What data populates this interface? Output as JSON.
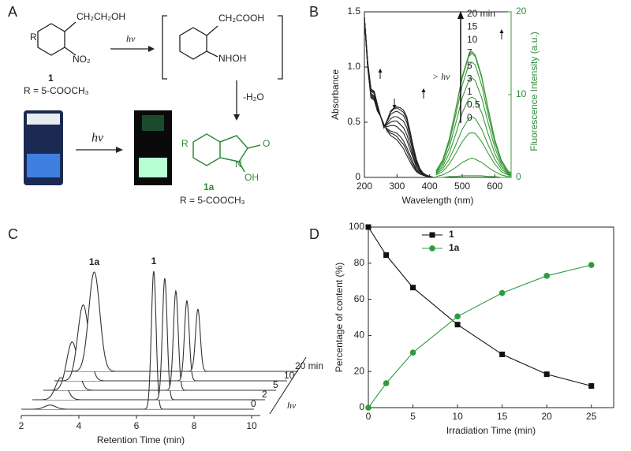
{
  "scheme": {
    "label": "A",
    "r1": "R",
    "side1": "CH₂CH₂OH",
    "no2": "NO₂",
    "num1": "1",
    "rdef1": "R = 5-COOCH₃",
    "hv1": "hν",
    "side2": "CH₂COOH",
    "nhoh": "NHOH",
    "loss": "-H₂O",
    "r2": "R",
    "o": "O",
    "n": "N",
    "oh": "OH",
    "num2": "1a",
    "rdef2": "R = 5-COOCH₃",
    "hv2": "hν"
  },
  "chart_data": [
    {
      "type": "line",
      "title": "B",
      "x_label": "Wavelength (nm)",
      "y_label": "Absorbance",
      "y2_label": "Fluorescence Intensity (a.u.)",
      "xlim": [
        200,
        650
      ],
      "xticks": [
        200,
        300,
        400,
        500,
        600
      ],
      "ylim": [
        0,
        1.5
      ],
      "yticks": [
        0,
        0.5,
        {
          "value": 1,
          "label": "1.0"
        },
        1.5
      ],
      "y2lim": [
        0,
        20
      ],
      "y2ticks": [
        0,
        10,
        20
      ],
      "arrow_label": "> hν",
      "series": [
        {
          "name": "0",
          "color": "#222222",
          "x": [
            200,
            210,
            220,
            230,
            240,
            250,
            260,
            270,
            280,
            290,
            300,
            310,
            320,
            330,
            340,
            350,
            360,
            370,
            380,
            390,
            400,
            410,
            420
          ],
          "values": [
            1.45,
            1.0,
            0.72,
            0.7,
            0.6,
            0.55,
            0.48,
            0.42,
            0.38,
            0.36,
            0.34,
            0.3,
            0.26,
            0.2,
            0.14,
            0.09,
            0.05,
            0.03,
            0.02,
            0.01,
            0.01,
            0,
            0
          ]
        },
        {
          "name": "0.5",
          "color": "#222222",
          "x": [
            200,
            210,
            220,
            230,
            240,
            250,
            260,
            270,
            280,
            290,
            300,
            310,
            320,
            330,
            340,
            350,
            360,
            370,
            380,
            390,
            400,
            410,
            420
          ],
          "values": [
            1.45,
            1.01,
            0.73,
            0.71,
            0.61,
            0.55,
            0.48,
            0.43,
            0.4,
            0.39,
            0.37,
            0.33,
            0.3,
            0.24,
            0.17,
            0.11,
            0.06,
            0.04,
            0.02,
            0.01,
            0.01,
            0,
            0
          ]
        },
        {
          "name": "1",
          "color": "#222222",
          "x": [
            200,
            210,
            220,
            230,
            240,
            250,
            260,
            270,
            280,
            290,
            300,
            310,
            320,
            330,
            340,
            350,
            360,
            370,
            380,
            390,
            400,
            410,
            420
          ],
          "values": [
            1.45,
            1.01,
            0.74,
            0.72,
            0.61,
            0.55,
            0.47,
            0.44,
            0.42,
            0.41,
            0.4,
            0.37,
            0.33,
            0.27,
            0.2,
            0.13,
            0.07,
            0.04,
            0.02,
            0.01,
            0.01,
            0,
            0
          ]
        },
        {
          "name": "3",
          "color": "#222222",
          "x": [
            200,
            210,
            220,
            230,
            240,
            250,
            260,
            270,
            280,
            290,
            300,
            310,
            320,
            330,
            340,
            350,
            360,
            370,
            380,
            390,
            400,
            410,
            420
          ],
          "values": [
            1.45,
            1.02,
            0.75,
            0.73,
            0.62,
            0.55,
            0.47,
            0.46,
            0.47,
            0.47,
            0.46,
            0.43,
            0.4,
            0.34,
            0.25,
            0.17,
            0.09,
            0.05,
            0.03,
            0.01,
            0.01,
            0,
            0
          ]
        },
        {
          "name": "5",
          "color": "#222222",
          "x": [
            200,
            210,
            220,
            230,
            240,
            250,
            260,
            270,
            280,
            290,
            300,
            310,
            320,
            330,
            340,
            350,
            360,
            370,
            380,
            390,
            400,
            410,
            420
          ],
          "values": [
            1.45,
            1.03,
            0.76,
            0.74,
            0.63,
            0.55,
            0.46,
            0.48,
            0.5,
            0.51,
            0.51,
            0.48,
            0.45,
            0.39,
            0.29,
            0.19,
            0.11,
            0.06,
            0.03,
            0.02,
            0.01,
            0,
            0
          ]
        },
        {
          "name": "7",
          "color": "#222222",
          "x": [
            200,
            210,
            220,
            230,
            240,
            250,
            260,
            270,
            280,
            290,
            300,
            310,
            320,
            330,
            340,
            350,
            360,
            370,
            380,
            390,
            400,
            410,
            420
          ],
          "values": [
            1.45,
            1.04,
            0.78,
            0.76,
            0.64,
            0.55,
            0.46,
            0.49,
            0.53,
            0.55,
            0.55,
            0.53,
            0.51,
            0.45,
            0.34,
            0.22,
            0.13,
            0.07,
            0.03,
            0.02,
            0.01,
            0,
            0
          ]
        },
        {
          "name": "10",
          "color": "#222222",
          "x": [
            200,
            210,
            220,
            230,
            240,
            250,
            260,
            270,
            280,
            290,
            300,
            310,
            320,
            330,
            340,
            350,
            360,
            370,
            380,
            390,
            400,
            410,
            420
          ],
          "values": [
            1.45,
            1.04,
            0.79,
            0.77,
            0.65,
            0.55,
            0.45,
            0.51,
            0.57,
            0.59,
            0.6,
            0.58,
            0.56,
            0.5,
            0.38,
            0.25,
            0.14,
            0.07,
            0.04,
            0.02,
            0.01,
            0,
            0
          ]
        },
        {
          "name": "15",
          "color": "#222222",
          "x": [
            200,
            210,
            220,
            230,
            240,
            250,
            260,
            270,
            280,
            290,
            300,
            310,
            320,
            330,
            340,
            350,
            360,
            370,
            380,
            390,
            400,
            410,
            420
          ],
          "values": [
            1.45,
            1.05,
            0.8,
            0.78,
            0.66,
            0.55,
            0.45,
            0.52,
            0.59,
            0.62,
            0.63,
            0.61,
            0.59,
            0.53,
            0.41,
            0.27,
            0.15,
            0.08,
            0.04,
            0.02,
            0.01,
            0,
            0
          ]
        },
        {
          "name": "20 min",
          "color": "#222222",
          "x": [
            200,
            210,
            220,
            230,
            240,
            250,
            260,
            270,
            280,
            290,
            300,
            310,
            320,
            330,
            340,
            350,
            360,
            370,
            380,
            390,
            400,
            410,
            420
          ],
          "values": [
            1.45,
            1.05,
            0.8,
            0.78,
            0.66,
            0.55,
            0.45,
            0.52,
            0.6,
            0.63,
            0.64,
            0.63,
            0.61,
            0.55,
            0.42,
            0.28,
            0.16,
            0.08,
            0.04,
            0.02,
            0.01,
            0,
            0
          ]
        },
        {
          "color": "#3a9a3a",
          "axis": "y2",
          "x": [
            420,
            440,
            460,
            480,
            500,
            520,
            530,
            540,
            560,
            580,
            600,
            620,
            640,
            650
          ],
          "values": [
            0,
            0,
            0.1,
            0.1,
            0.2,
            0.2,
            0.2,
            0.2,
            0.2,
            0.1,
            0.1,
            0,
            0,
            0
          ]
        },
        {
          "color": "#3a9a3a",
          "axis": "y2",
          "x": [
            420,
            440,
            460,
            480,
            500,
            520,
            530,
            540,
            560,
            580,
            600,
            620,
            640,
            650
          ],
          "values": [
            0.1,
            0.3,
            0.7,
            1.2,
            1.8,
            2.2,
            2.3,
            2.2,
            1.8,
            1.2,
            0.7,
            0.3,
            0.1,
            0.1
          ]
        },
        {
          "color": "#3a9a3a",
          "axis": "y2",
          "x": [
            420,
            440,
            460,
            480,
            500,
            520,
            530,
            540,
            560,
            580,
            600,
            620,
            640,
            650
          ],
          "values": [
            0.3,
            0.7,
            1.6,
            2.9,
            4.3,
            5.3,
            5.4,
            5.3,
            4.3,
            2.9,
            1.6,
            0.7,
            0.3,
            0.2
          ]
        },
        {
          "color": "#3a9a3a",
          "axis": "y2",
          "x": [
            420,
            440,
            460,
            480,
            500,
            520,
            530,
            540,
            560,
            580,
            600,
            620,
            640,
            650
          ],
          "values": [
            0.4,
            1.0,
            2.2,
            3.9,
            5.8,
            7.1,
            7.3,
            7.1,
            5.8,
            3.9,
            2.2,
            1.0,
            0.4,
            0.2
          ]
        },
        {
          "color": "#3a9a3a",
          "axis": "y2",
          "x": [
            420,
            440,
            460,
            480,
            500,
            520,
            530,
            540,
            560,
            580,
            600,
            620,
            640,
            650
          ],
          "values": [
            0.5,
            1.3,
            2.9,
            5.2,
            7.8,
            9.5,
            9.7,
            9.5,
            7.8,
            5.2,
            2.9,
            1.3,
            0.5,
            0.3
          ]
        },
        {
          "color": "#3a9a3a",
          "axis": "y2",
          "x": [
            420,
            440,
            460,
            480,
            500,
            520,
            530,
            540,
            560,
            580,
            600,
            620,
            640,
            650
          ],
          "values": [
            0.6,
            1.6,
            3.6,
            6.5,
            9.6,
            11.7,
            12.0,
            11.7,
            9.6,
            6.5,
            3.6,
            1.6,
            0.6,
            0.4
          ]
        },
        {
          "color": "#3a9a3a",
          "axis": "y2",
          "x": [
            420,
            440,
            460,
            480,
            500,
            520,
            530,
            540,
            560,
            580,
            600,
            620,
            640,
            650
          ],
          "values": [
            0.7,
            1.9,
            4.2,
            7.5,
            11.1,
            13.6,
            13.9,
            13.6,
            11.1,
            7.5,
            4.2,
            1.9,
            0.7,
            0.4
          ]
        },
        {
          "color": "#3a9a3a",
          "axis": "y2",
          "x": [
            420,
            440,
            460,
            480,
            500,
            520,
            530,
            540,
            560,
            580,
            600,
            620,
            640,
            650
          ],
          "values": [
            0.8,
            2.0,
            4.5,
            8.1,
            12.0,
            14.6,
            15.0,
            14.6,
            12.0,
            8.1,
            4.5,
            2.0,
            0.8,
            0.5
          ]
        },
        {
          "color": "#3a9a3a",
          "axis": "y2",
          "x": [
            420,
            440,
            460,
            480,
            500,
            520,
            530,
            540,
            560,
            580,
            600,
            620,
            640,
            650
          ],
          "values": [
            0.8,
            2.1,
            4.6,
            8.2,
            12.2,
            14.8,
            15.2,
            14.8,
            12.2,
            8.2,
            4.6,
            2.1,
            0.8,
            0.5
          ]
        }
      ]
    },
    {
      "type": "chromatogram",
      "title": "C",
      "x_label": "Retention Time (min)",
      "xlim": [
        2,
        10.3
      ],
      "xticks": [
        2,
        4,
        6,
        8,
        10
      ],
      "x": [
        3.0,
        6.6
      ],
      "peak_labels": [
        "1a",
        "1"
      ],
      "color": "#333333",
      "series": [
        {
          "name": "0",
          "values": [
            3,
            100
          ]
        },
        {
          "name": "2",
          "values": [
            16,
            88
          ]
        },
        {
          "name": "5",
          "values": [
            35,
            72
          ]
        },
        {
          "name": "10",
          "values": [
            55,
            58
          ]
        },
        {
          "name": "20 min",
          "values": [
            72,
            45
          ]
        }
      ]
    },
    {
      "type": "line",
      "title": "D",
      "x_label": "Irradiation Time (min)",
      "y_label": "Percentage of content (%)",
      "xlim": [
        0,
        27.5
      ],
      "xticks": [
        0,
        5,
        10,
        15,
        20,
        25
      ],
      "ylim": [
        0,
        100
      ],
      "yticks": [
        0,
        20,
        40,
        60,
        80,
        100
      ],
      "legend": "top-left",
      "series": [
        {
          "name": "1",
          "color": "#111111",
          "marker": "square",
          "x": [
            0,
            2,
            5,
            10,
            15,
            20,
            25
          ],
          "values": [
            100,
            84.5,
            66.5,
            46,
            29.5,
            18.5,
            12
          ]
        },
        {
          "name": "1a",
          "color": "#2e9b3e",
          "marker": "circle",
          "x": [
            0,
            2,
            5,
            10,
            15,
            20,
            25
          ],
          "values": [
            0,
            13.5,
            30.5,
            50.5,
            63.5,
            73,
            79
          ]
        }
      ]
    }
  ]
}
